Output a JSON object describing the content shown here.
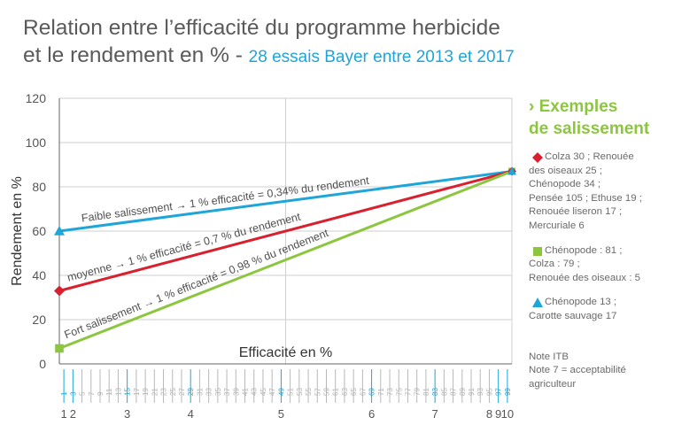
{
  "title": {
    "line1": "Relation entre l’efficacité du programme herbicide",
    "line2": "et le rendement en % -",
    "highlight": "28 essais Bayer entre 2013 et 2017"
  },
  "colors": {
    "blue": "#1ea5d9",
    "red": "#d9202e",
    "green": "#8cc63f",
    "axis": "#666666"
  },
  "chart_data": {
    "type": "line",
    "xlabel": "Efficacité en %",
    "ylabel": "Rendement en %",
    "xlim": [
      0,
      100
    ],
    "ylim": [
      0,
      120
    ],
    "yticks": [
      0,
      20,
      40,
      60,
      80,
      100,
      120
    ],
    "grid": true,
    "legend": "right",
    "series": [
      {
        "key": "faible",
        "color": "#1ea5d9",
        "marker": "triangle",
        "x": [
          0,
          100
        ],
        "y": [
          60,
          87
        ],
        "label": "Faible  salissement → 1 % efficacité = 0,34% du rendement"
      },
      {
        "key": "moyenne",
        "color": "#d9202e",
        "marker": "diamond",
        "x": [
          0,
          100
        ],
        "y": [
          33,
          87
        ],
        "label": "moyenne → 1 % efficacité = 0,7 % du rendement"
      },
      {
        "key": "fort",
        "color": "#8cc63f",
        "marker": "square",
        "x": [
          0,
          100
        ],
        "y": [
          7,
          87
        ],
        "label": "Fort  salissement → 1 % efficacité = 0,98 % du rendement"
      }
    ],
    "secondary_scale": {
      "small_ticks": [
        "1",
        "3",
        "5",
        "7",
        "9",
        "11",
        "13",
        "15",
        "17",
        "19",
        "21",
        "23",
        "25",
        "27",
        "29",
        "31",
        "33",
        "35",
        "37",
        "39",
        "41",
        "43",
        "45",
        "47",
        "49",
        "51",
        "53",
        "55",
        "57",
        "59",
        "61",
        "63",
        "65",
        "67",
        "69",
        "71",
        "73",
        "75",
        "77",
        "79",
        "81",
        "83",
        "85",
        "87",
        "89",
        "91",
        "93",
        "95",
        "97",
        "99"
      ],
      "highlighted": [
        "1",
        "3",
        "15",
        "29",
        "49",
        "69",
        "83",
        "97",
        "99"
      ],
      "notes": [
        {
          "label": "1",
          "at": 1
        },
        {
          "label": "2",
          "at": 3
        },
        {
          "label": "3",
          "at": 15
        },
        {
          "label": "4",
          "at": 29
        },
        {
          "label": "5",
          "at": 49
        },
        {
          "label": "6",
          "at": 69
        },
        {
          "label": "7",
          "at": 83
        },
        {
          "label": "8",
          "at": 95
        },
        {
          "label": "9",
          "at": 97
        },
        {
          "label": "10",
          "at": 99
        }
      ]
    }
  },
  "legend": {
    "heading_line1": "› Exemples",
    "heading_line2": "de salissement",
    "items": [
      {
        "marker": "diamond",
        "color": "#d9202e",
        "lines": [
          "Colza 30 ; Renouée",
          "des oiseaux 25 ;",
          "Chénopode 34 ;",
          "Pensée 105 ; Ethuse 19 ;",
          "Renouée liseron 17 ;",
          "Mercuriale 6"
        ]
      },
      {
        "marker": "square",
        "color": "#8cc63f",
        "lines": [
          "Chénopode : 81 ;",
          "Colza : 79 ;",
          "Renouée des oiseaux : 5"
        ]
      },
      {
        "marker": "triangle",
        "color": "#1ea5d9",
        "lines": [
          "Chénopode 13 ;",
          "Carotte sauvage 17"
        ]
      }
    ],
    "note_lines": [
      "Note ITB",
      "Note 7 = acceptabilité",
      "agriculteur"
    ]
  }
}
